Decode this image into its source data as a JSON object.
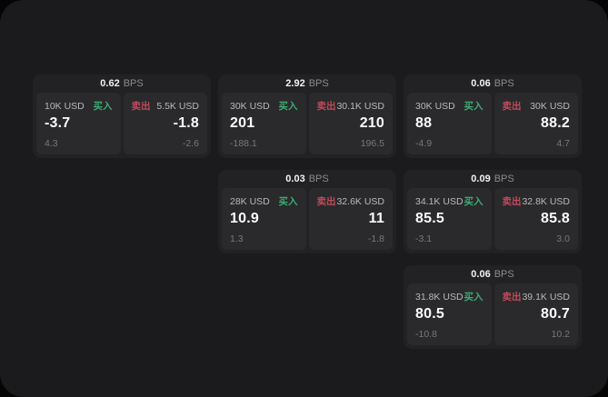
{
  "labels": {
    "bps_unit": "BPS",
    "buy": "买入",
    "sell": "卖出"
  },
  "colors": {
    "background": "#050505",
    "surface": "#1b1b1d",
    "card": "#222224",
    "panel": "#2a2a2c",
    "buy": "#3cab74",
    "sell": "#c04a5c",
    "price_text": "#fbfbfb",
    "muted_text": "#78787b"
  },
  "cards": [
    {
      "col": 1,
      "row": 1,
      "bps": "0.62",
      "buy": {
        "amount": "10K USD",
        "price": "-3.7",
        "delta": "4.3"
      },
      "sell": {
        "amount": "5.5K USD",
        "price": "-1.8",
        "delta": "-2.6"
      }
    },
    {
      "col": 2,
      "row": 1,
      "bps": "2.92",
      "buy": {
        "amount": "30K USD",
        "price": "201",
        "delta": "-188.1"
      },
      "sell": {
        "amount": "30.1K USD",
        "price": "210",
        "delta": "196.5"
      }
    },
    {
      "col": 3,
      "row": 1,
      "bps": "0.06",
      "buy": {
        "amount": "30K USD",
        "price": "88",
        "delta": "-4.9"
      },
      "sell": {
        "amount": "30K USD",
        "price": "88.2",
        "delta": "4.7"
      }
    },
    {
      "col": 2,
      "row": 2,
      "bps": "0.03",
      "buy": {
        "amount": "28K USD",
        "price": "10.9",
        "delta": "1.3"
      },
      "sell": {
        "amount": "32.6K USD",
        "price": "11",
        "delta": "-1.8"
      }
    },
    {
      "col": 3,
      "row": 2,
      "bps": "0.09",
      "buy": {
        "amount": "34.1K USD",
        "price": "85.5",
        "delta": "-3.1"
      },
      "sell": {
        "amount": "32.8K USD",
        "price": "85.8",
        "delta": "3.0"
      }
    },
    {
      "col": 3,
      "row": 3,
      "bps": "0.06",
      "buy": {
        "amount": "31.8K USD",
        "price": "80.5",
        "delta": "-10.8"
      },
      "sell": {
        "amount": "39.1K USD",
        "price": "80.7",
        "delta": "10.2"
      }
    }
  ]
}
